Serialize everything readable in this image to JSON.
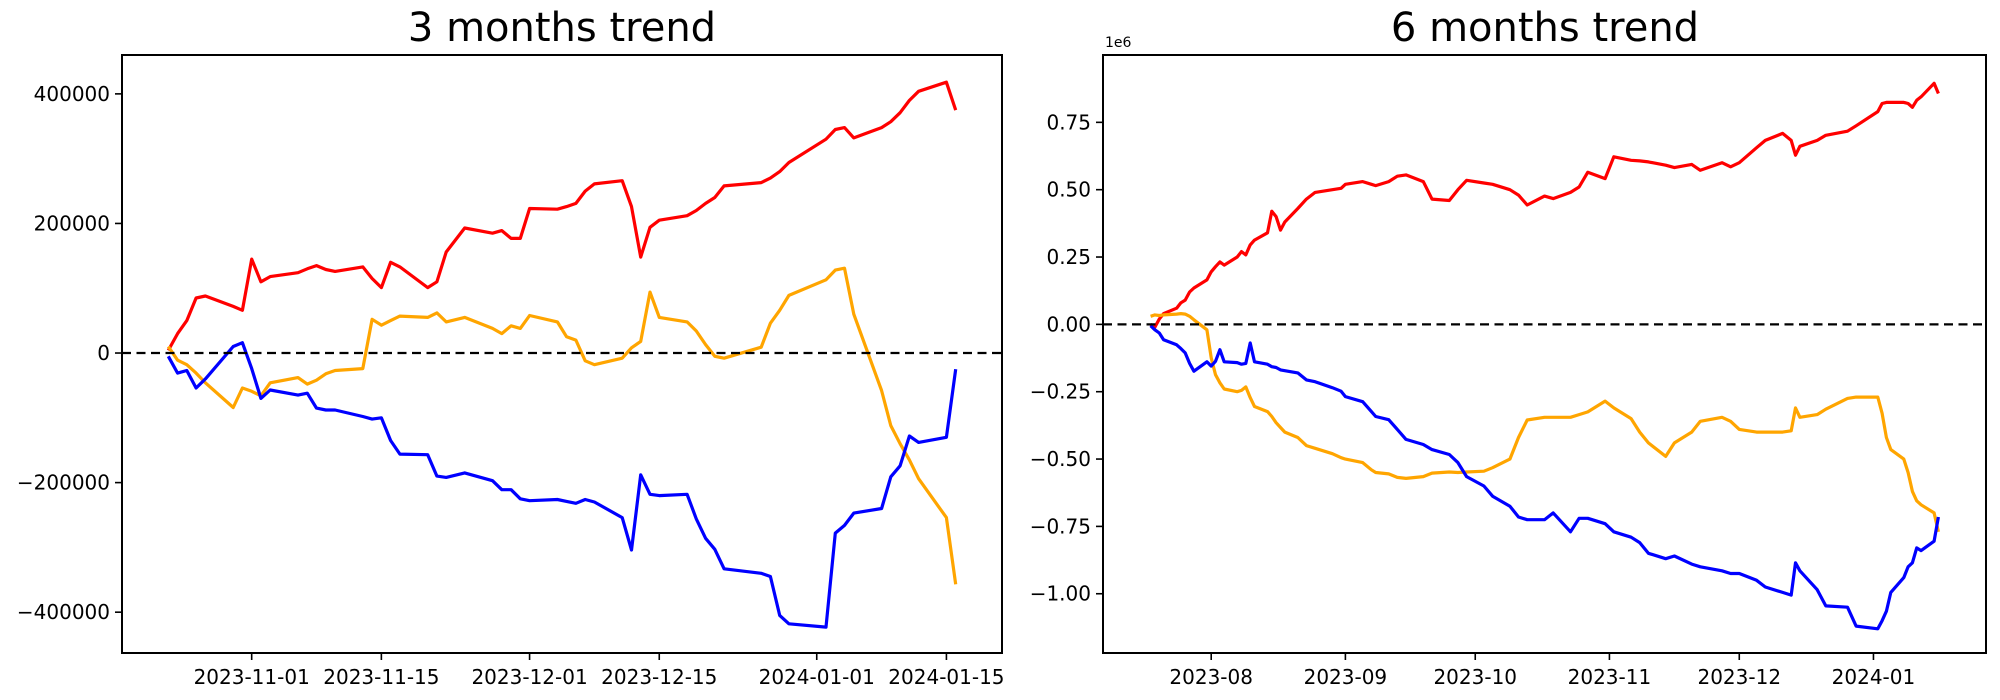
{
  "chart_data": [
    {
      "type": "line",
      "title": "3 months trend",
      "grid": false,
      "legend": false,
      "zero_line": {
        "value": 0,
        "style": "dashed",
        "color": "#000000"
      },
      "x_axis": {
        "min": "2023-10-18",
        "max": "2024-01-21",
        "ticks": [
          {
            "date": "2023-11-01",
            "label": "2023-11-01"
          },
          {
            "date": "2023-11-15",
            "label": "2023-11-15"
          },
          {
            "date": "2023-12-01",
            "label": "2023-12-01"
          },
          {
            "date": "2023-12-15",
            "label": "2023-12-15"
          },
          {
            "date": "2024-01-01",
            "label": "2024-01-01"
          },
          {
            "date": "2024-01-15",
            "label": "2024-01-15"
          }
        ]
      },
      "y_axis": {
        "min": -463000,
        "max": 460000,
        "offset_label": null,
        "ticks": [
          {
            "value": 400000,
            "label": "400000"
          },
          {
            "value": 200000,
            "label": "200000"
          },
          {
            "value": 0,
            "label": "0"
          },
          {
            "value": -200000,
            "label": "−200000"
          },
          {
            "value": -400000,
            "label": "−400000"
          }
        ]
      },
      "x_dates": [
        "2023-10-23",
        "2023-10-24",
        "2023-10-25",
        "2023-10-26",
        "2023-10-27",
        "2023-10-30",
        "2023-10-31",
        "2023-11-01",
        "2023-11-02",
        "2023-11-03",
        "2023-11-06",
        "2023-11-07",
        "2023-11-08",
        "2023-11-09",
        "2023-11-10",
        "2023-11-13",
        "2023-11-14",
        "2023-11-15",
        "2023-11-16",
        "2023-11-17",
        "2023-11-20",
        "2023-11-21",
        "2023-11-22",
        "2023-11-24",
        "2023-11-27",
        "2023-11-28",
        "2023-11-29",
        "2023-11-30",
        "2023-12-01",
        "2023-12-04",
        "2023-12-05",
        "2023-12-06",
        "2023-12-07",
        "2023-12-08",
        "2023-12-11",
        "2023-12-12",
        "2023-12-13",
        "2023-12-14",
        "2023-12-15",
        "2023-12-18",
        "2023-12-19",
        "2023-12-20",
        "2023-12-21",
        "2023-12-22",
        "2023-12-26",
        "2023-12-27",
        "2023-12-28",
        "2023-12-29",
        "2024-01-02",
        "2024-01-03",
        "2024-01-04",
        "2024-01-05",
        "2024-01-08",
        "2024-01-09",
        "2024-01-10",
        "2024-01-11",
        "2024-01-12",
        "2024-01-15",
        "2024-01-16"
      ],
      "series": [
        {
          "name": "red",
          "color": "#ff0000",
          "values": [
            4000,
            30000,
            50000,
            85000,
            88000,
            72000,
            66000,
            145000,
            110000,
            118000,
            124000,
            130000,
            135000,
            129000,
            126000,
            133000,
            115000,
            101000,
            140000,
            133000,
            101000,
            110000,
            156000,
            193000,
            185000,
            189000,
            177000,
            177000,
            223000,
            222000,
            226000,
            231000,
            250000,
            261000,
            266000,
            226000,
            148000,
            194000,
            205000,
            212000,
            220000,
            231000,
            240000,
            258000,
            263000,
            270000,
            280000,
            294000,
            330000,
            345000,
            348000,
            332000,
            348000,
            357000,
            371000,
            390000,
            404000,
            418000,
            375000
          ]
        },
        {
          "name": "orange",
          "color": "#ffa500",
          "values": [
            10000,
            -11000,
            -18000,
            -31000,
            -46000,
            -84000,
            -54000,
            -59000,
            -66000,
            -46000,
            -38000,
            -48000,
            -42000,
            -32000,
            -27000,
            -24000,
            52000,
            43000,
            50000,
            57000,
            55000,
            62000,
            48000,
            55000,
            38000,
            30000,
            42000,
            38000,
            58000,
            48000,
            25000,
            20000,
            -12000,
            -18000,
            -8000,
            8000,
            18000,
            94000,
            55000,
            48000,
            34000,
            13000,
            -5000,
            -8000,
            9000,
            46000,
            66000,
            89000,
            113000,
            128000,
            131000,
            60000,
            -58000,
            -112000,
            -140000,
            -165000,
            -194000,
            -254000,
            -357000
          ]
        },
        {
          "name": "blue",
          "color": "#0000ff",
          "values": [
            -5000,
            -31000,
            -27000,
            -54000,
            -40000,
            10000,
            16000,
            -24000,
            -70000,
            -57000,
            -65000,
            -62000,
            -85000,
            -88000,
            -88000,
            -98000,
            -102000,
            -100000,
            -135000,
            -156000,
            -157000,
            -190000,
            -192000,
            -185000,
            -197000,
            -211000,
            -211000,
            -225000,
            -228000,
            -226000,
            -229000,
            -232000,
            -226000,
            -230000,
            -254000,
            -304000,
            -188000,
            -218000,
            -220000,
            -218000,
            -256000,
            -286000,
            -303000,
            -333000,
            -340000,
            -345000,
            -405000,
            -418000,
            -423000,
            -278000,
            -266000,
            -247000,
            -240000,
            -191000,
            -174000,
            -128000,
            -138000,
            -130000,
            -25000
          ]
        }
      ]
    },
    {
      "type": "line",
      "title": "6 months trend",
      "grid": false,
      "legend": false,
      "zero_line": {
        "value": 0,
        "style": "dashed",
        "color": "#000000"
      },
      "x_axis": {
        "min": "2023-07-07",
        "max": "2024-01-27",
        "ticks": [
          {
            "date": "2023-08-01",
            "label": "2023-08"
          },
          {
            "date": "2023-09-01",
            "label": "2023-09"
          },
          {
            "date": "2023-10-01",
            "label": "2023-10"
          },
          {
            "date": "2023-11-01",
            "label": "2023-11"
          },
          {
            "date": "2023-12-01",
            "label": "2023-12"
          },
          {
            "date": "2024-01-01",
            "label": "2024-01"
          }
        ]
      },
      "y_axis": {
        "min": -1220000,
        "max": 1000000,
        "offset_label": "1e6",
        "ticks": [
          {
            "value": 750000,
            "label": "0.75"
          },
          {
            "value": 500000,
            "label": "0.50"
          },
          {
            "value": 250000,
            "label": "0.25"
          },
          {
            "value": 0,
            "label": "0.00"
          },
          {
            "value": -250000,
            "label": "−0.25"
          },
          {
            "value": -500000,
            "label": "−0.50"
          },
          {
            "value": -750000,
            "label": "−0.75"
          },
          {
            "value": -1000000,
            "label": "−1.00"
          }
        ]
      },
      "x_dates": [
        "2023-07-18",
        "2023-07-19",
        "2023-07-20",
        "2023-07-21",
        "2023-07-24",
        "2023-07-25",
        "2023-07-26",
        "2023-07-27",
        "2023-07-28",
        "2023-07-31",
        "2023-08-01",
        "2023-08-02",
        "2023-08-03",
        "2023-08-04",
        "2023-08-07",
        "2023-08-08",
        "2023-08-09",
        "2023-08-10",
        "2023-08-11",
        "2023-08-14",
        "2023-08-15",
        "2023-08-16",
        "2023-08-17",
        "2023-08-18",
        "2023-08-21",
        "2023-08-23",
        "2023-08-25",
        "2023-08-29",
        "2023-08-31",
        "2023-09-01",
        "2023-09-05",
        "2023-09-07",
        "2023-09-08",
        "2023-09-11",
        "2023-09-13",
        "2023-09-15",
        "2023-09-19",
        "2023-09-21",
        "2023-09-25",
        "2023-09-27",
        "2023-09-29",
        "2023-10-03",
        "2023-10-05",
        "2023-10-09",
        "2023-10-11",
        "2023-10-13",
        "2023-10-17",
        "2023-10-19",
        "2023-10-23",
        "2023-10-25",
        "2023-10-27",
        "2023-10-31",
        "2023-11-02",
        "2023-11-06",
        "2023-11-08",
        "2023-11-10",
        "2023-11-14",
        "2023-11-16",
        "2023-11-20",
        "2023-11-22",
        "2023-11-27",
        "2023-11-29",
        "2023-12-01",
        "2023-12-05",
        "2023-12-07",
        "2023-12-11",
        "2023-12-13",
        "2023-12-14",
        "2023-12-15",
        "2023-12-19",
        "2023-12-21",
        "2023-12-26",
        "2023-12-28",
        "2024-01-02",
        "2024-01-03",
        "2024-01-04",
        "2024-01-05",
        "2024-01-08",
        "2024-01-09",
        "2024-01-10",
        "2024-01-11",
        "2024-01-12",
        "2024-01-15",
        "2024-01-16"
      ],
      "series": [
        {
          "name": "red",
          "color": "#ff0000",
          "values": [
            0,
            -10000,
            20000,
            40000,
            60000,
            80000,
            90000,
            120000,
            135000,
            165000,
            195000,
            214000,
            232000,
            220000,
            250000,
            270000,
            258000,
            295000,
            313000,
            340000,
            420000,
            400000,
            350000,
            380000,
            430000,
            465000,
            490000,
            500000,
            505000,
            520000,
            530000,
            520000,
            515000,
            530000,
            550000,
            555000,
            530000,
            465000,
            460000,
            500000,
            535000,
            525000,
            520000,
            500000,
            480000,
            443000,
            476000,
            467000,
            490000,
            510000,
            565000,
            541000,
            622000,
            609000,
            607000,
            603000,
            591000,
            582000,
            594000,
            572000,
            600000,
            585000,
            600000,
            656000,
            683000,
            709000,
            683000,
            628000,
            661000,
            683000,
            702000,
            717000,
            737000,
            790000,
            820000,
            824000,
            824000,
            824000,
            820000,
            806000,
            832000,
            845000,
            895000,
            857000
          ]
        },
        {
          "name": "orange",
          "color": "#ffa500",
          "values": [
            30000,
            35000,
            33000,
            35000,
            38000,
            40000,
            38000,
            30000,
            17000,
            -20000,
            -124000,
            -187000,
            -217000,
            -240000,
            -250000,
            -245000,
            -232000,
            -272000,
            -305000,
            -324000,
            -342000,
            -365000,
            -383000,
            -400000,
            -420000,
            -450000,
            -460000,
            -480000,
            -495000,
            -500000,
            -513000,
            -540000,
            -550000,
            -555000,
            -568000,
            -572000,
            -565000,
            -552000,
            -548000,
            -550000,
            -548000,
            -545000,
            -532000,
            -500000,
            -420000,
            -355000,
            -345000,
            -345000,
            -345000,
            -335000,
            -325000,
            -285000,
            -310000,
            -350000,
            -400000,
            -440000,
            -490000,
            -440000,
            -400000,
            -360000,
            -345000,
            -360000,
            -390000,
            -400000,
            -400000,
            -400000,
            -395000,
            -310000,
            -345000,
            -335000,
            -315000,
            -275000,
            -270000,
            -270000,
            -330000,
            -420000,
            -465000,
            -500000,
            -550000,
            -620000,
            -655000,
            -670000,
            -700000,
            -770000
          ]
        },
        {
          "name": "blue",
          "color": "#0000ff",
          "values": [
            -5000,
            -20000,
            -32000,
            -57000,
            -76000,
            -90000,
            -106000,
            -145000,
            -174000,
            -139000,
            -155000,
            -137000,
            -94000,
            -139000,
            -142000,
            -148000,
            -145000,
            -69000,
            -139000,
            -148000,
            -157000,
            -160000,
            -169000,
            -172000,
            -180000,
            -206000,
            -213000,
            -235000,
            -248000,
            -268000,
            -287000,
            -324000,
            -342000,
            -354000,
            -390000,
            -427000,
            -446000,
            -465000,
            -483000,
            -513000,
            -565000,
            -600000,
            -638000,
            -675000,
            -715000,
            -725000,
            -725000,
            -700000,
            -770000,
            -720000,
            -720000,
            -740000,
            -770000,
            -790000,
            -810000,
            -850000,
            -870000,
            -860000,
            -890000,
            -900000,
            -915000,
            -925000,
            -925000,
            -950000,
            -975000,
            -995000,
            -1005000,
            -885000,
            -915000,
            -985000,
            -1045000,
            -1050000,
            -1120000,
            -1130000,
            -1100000,
            -1065000,
            -995000,
            -940000,
            -900000,
            -885000,
            -830000,
            -840000,
            -805000,
            -715000
          ]
        }
      ]
    }
  ]
}
